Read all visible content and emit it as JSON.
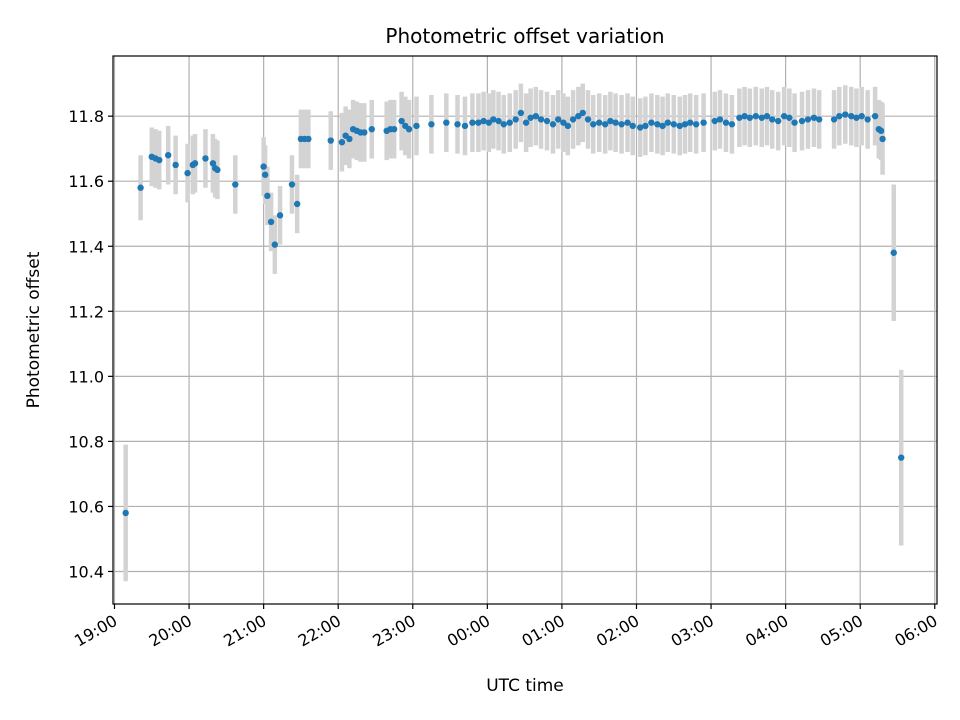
{
  "chart_data": {
    "type": "scatter",
    "title": "Photometric offset variation",
    "xlabel": "UTC time",
    "ylabel": "Photometric offset",
    "grid": true,
    "xlim": [
      18.98,
      30.03
    ],
    "ylim": [
      10.3,
      11.985
    ],
    "x_tick_values": [
      19,
      20,
      21,
      22,
      23,
      24,
      25,
      26,
      27,
      28,
      29,
      30
    ],
    "x_tick_labels": [
      "19:00",
      "20:00",
      "21:00",
      "22:00",
      "23:00",
      "00:00",
      "01:00",
      "02:00",
      "03:00",
      "04:00",
      "05:00",
      "06:00"
    ],
    "y_tick_values": [
      10.4,
      10.6,
      10.8,
      11.0,
      11.2,
      11.4,
      11.6,
      11.8
    ],
    "y_tick_labels": [
      "10.4",
      "10.6",
      "10.8",
      "11.0",
      "11.2",
      "11.4",
      "11.6",
      "11.8"
    ],
    "series": [
      {
        "name": "Photometric offset",
        "marker_color": "#1f77b4",
        "error_color": "#d3d3d3",
        "points": [
          [
            19.15,
            10.58,
            0.21
          ],
          [
            19.35,
            11.58,
            0.1
          ],
          [
            19.5,
            11.675,
            0.09
          ],
          [
            19.55,
            11.67,
            0.09
          ],
          [
            19.6,
            11.665,
            0.09
          ],
          [
            19.72,
            11.68,
            0.09
          ],
          [
            19.82,
            11.65,
            0.09
          ],
          [
            19.98,
            11.625,
            0.09
          ],
          [
            20.05,
            11.65,
            0.09
          ],
          [
            20.08,
            11.655,
            0.09
          ],
          [
            20.22,
            11.67,
            0.09
          ],
          [
            20.32,
            11.655,
            0.09
          ],
          [
            20.35,
            11.64,
            0.09
          ],
          [
            20.38,
            11.635,
            0.09
          ],
          [
            20.62,
            11.59,
            0.09
          ],
          [
            21.0,
            11.645,
            0.09
          ],
          [
            21.02,
            11.62,
            0.09
          ],
          [
            21.05,
            11.555,
            0.09
          ],
          [
            21.1,
            11.475,
            0.09
          ],
          [
            21.15,
            11.405,
            0.09
          ],
          [
            21.22,
            11.495,
            0.09
          ],
          [
            21.38,
            11.59,
            0.09
          ],
          [
            21.45,
            11.53,
            0.09
          ],
          [
            21.5,
            11.73,
            0.09
          ],
          [
            21.55,
            11.73,
            0.09
          ],
          [
            21.6,
            11.73,
            0.09
          ],
          [
            21.9,
            11.725,
            0.09
          ],
          [
            22.05,
            11.72,
            0.09
          ],
          [
            22.1,
            11.74,
            0.09
          ],
          [
            22.15,
            11.73,
            0.09
          ],
          [
            22.2,
            11.76,
            0.09
          ],
          [
            22.25,
            11.755,
            0.09
          ],
          [
            22.3,
            11.75,
            0.09
          ],
          [
            22.35,
            11.75,
            0.09
          ],
          [
            22.45,
            11.76,
            0.09
          ],
          [
            22.65,
            11.755,
            0.09
          ],
          [
            22.7,
            11.76,
            0.09
          ],
          [
            22.75,
            11.76,
            0.09
          ],
          [
            22.85,
            11.785,
            0.09
          ],
          [
            22.9,
            11.77,
            0.09
          ],
          [
            22.95,
            11.76,
            0.09
          ],
          [
            23.05,
            11.77,
            0.09
          ],
          [
            23.25,
            11.775,
            0.09
          ],
          [
            23.45,
            11.78,
            0.09
          ],
          [
            23.6,
            11.775,
            0.09
          ],
          [
            23.7,
            11.77,
            0.09
          ],
          [
            23.8,
            11.78,
            0.09
          ],
          [
            23.88,
            11.78,
            0.09
          ],
          [
            23.95,
            11.785,
            0.09
          ],
          [
            24.02,
            11.78,
            0.09
          ],
          [
            24.08,
            11.79,
            0.09
          ],
          [
            24.15,
            11.785,
            0.09
          ],
          [
            24.22,
            11.775,
            0.09
          ],
          [
            24.3,
            11.78,
            0.09
          ],
          [
            24.38,
            11.79,
            0.09
          ],
          [
            24.45,
            11.81,
            0.09
          ],
          [
            24.52,
            11.78,
            0.09
          ],
          [
            24.58,
            11.795,
            0.09
          ],
          [
            24.65,
            11.8,
            0.09
          ],
          [
            24.72,
            11.79,
            0.09
          ],
          [
            24.8,
            11.785,
            0.09
          ],
          [
            24.88,
            11.775,
            0.09
          ],
          [
            24.95,
            11.79,
            0.09
          ],
          [
            25.02,
            11.78,
            0.09
          ],
          [
            25.08,
            11.77,
            0.09
          ],
          [
            25.15,
            11.79,
            0.09
          ],
          [
            25.22,
            11.8,
            0.09
          ],
          [
            25.28,
            11.81,
            0.09
          ],
          [
            25.35,
            11.79,
            0.09
          ],
          [
            25.42,
            11.775,
            0.09
          ],
          [
            25.5,
            11.78,
            0.09
          ],
          [
            25.58,
            11.775,
            0.09
          ],
          [
            25.65,
            11.785,
            0.09
          ],
          [
            25.72,
            11.78,
            0.09
          ],
          [
            25.8,
            11.775,
            0.09
          ],
          [
            25.88,
            11.78,
            0.09
          ],
          [
            25.95,
            11.77,
            0.09
          ],
          [
            26.05,
            11.765,
            0.09
          ],
          [
            26.12,
            11.77,
            0.09
          ],
          [
            26.2,
            11.78,
            0.09
          ],
          [
            26.28,
            11.775,
            0.09
          ],
          [
            26.35,
            11.77,
            0.09
          ],
          [
            26.42,
            11.78,
            0.09
          ],
          [
            26.5,
            11.775,
            0.09
          ],
          [
            26.58,
            11.77,
            0.09
          ],
          [
            26.65,
            11.775,
            0.09
          ],
          [
            26.72,
            11.78,
            0.09
          ],
          [
            26.8,
            11.775,
            0.09
          ],
          [
            26.9,
            11.78,
            0.09
          ],
          [
            27.05,
            11.785,
            0.09
          ],
          [
            27.12,
            11.79,
            0.09
          ],
          [
            27.2,
            11.78,
            0.09
          ],
          [
            27.28,
            11.775,
            0.09
          ],
          [
            27.38,
            11.795,
            0.09
          ],
          [
            27.45,
            11.8,
            0.09
          ],
          [
            27.52,
            11.795,
            0.09
          ],
          [
            27.6,
            11.8,
            0.09
          ],
          [
            27.68,
            11.795,
            0.09
          ],
          [
            27.75,
            11.8,
            0.09
          ],
          [
            27.82,
            11.79,
            0.09
          ],
          [
            27.9,
            11.785,
            0.09
          ],
          [
            27.98,
            11.8,
            0.09
          ],
          [
            28.05,
            11.795,
            0.09
          ],
          [
            28.12,
            11.78,
            0.09
          ],
          [
            28.22,
            11.785,
            0.09
          ],
          [
            28.3,
            11.79,
            0.09
          ],
          [
            28.38,
            11.795,
            0.09
          ],
          [
            28.45,
            11.79,
            0.09
          ],
          [
            28.65,
            11.79,
            0.09
          ],
          [
            28.72,
            11.8,
            0.09
          ],
          [
            28.8,
            11.805,
            0.09
          ],
          [
            28.88,
            11.8,
            0.09
          ],
          [
            28.95,
            11.795,
            0.09
          ],
          [
            29.02,
            11.8,
            0.09
          ],
          [
            29.1,
            11.79,
            0.09
          ],
          [
            29.2,
            11.8,
            0.09
          ],
          [
            29.25,
            11.76,
            0.09
          ],
          [
            29.28,
            11.755,
            0.09
          ],
          [
            29.3,
            11.73,
            0.11
          ],
          [
            29.45,
            11.38,
            0.21
          ],
          [
            29.55,
            10.75,
            0.27
          ]
        ]
      }
    ]
  }
}
